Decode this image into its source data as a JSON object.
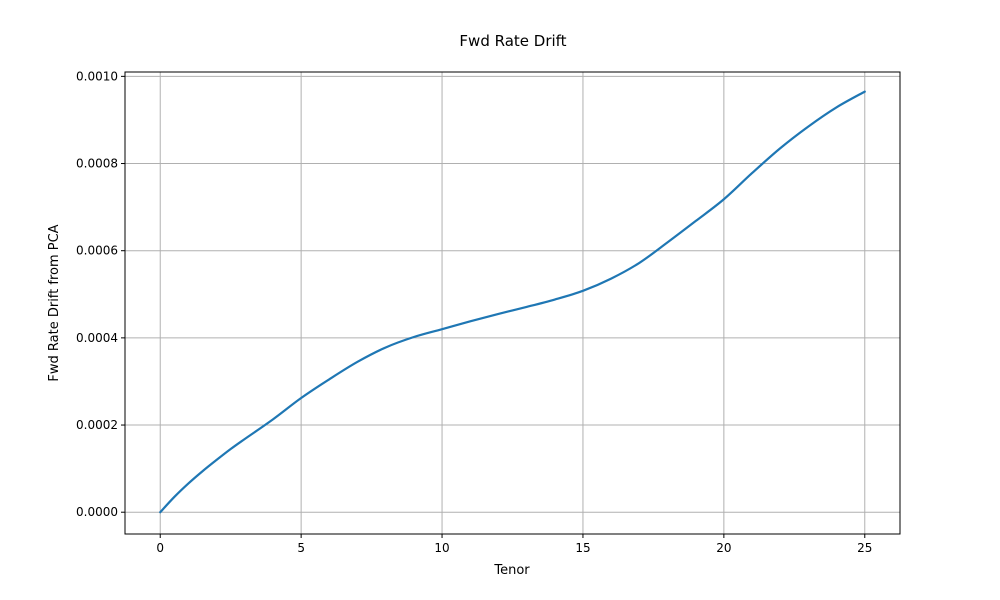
{
  "chart_data": {
    "type": "line",
    "title": "Fwd Rate Drift",
    "xlabel": "Tenor",
    "ylabel": "Fwd Rate Drift from PCA",
    "xlim": [
      -1.25,
      26.25
    ],
    "ylim": [
      -5e-05,
      0.00101
    ],
    "grid": true,
    "x_ticks": [
      0,
      5,
      10,
      15,
      20,
      25
    ],
    "x_tick_labels": [
      "0",
      "5",
      "10",
      "15",
      "20",
      "25"
    ],
    "y_ticks": [
      0.0,
      0.0002,
      0.0004,
      0.0006,
      0.0008,
      0.001
    ],
    "y_tick_labels": [
      "0.0000",
      "0.0002",
      "0.0004",
      "0.0006",
      "0.0008",
      "0.0010"
    ],
    "series_color": "#1f77b4",
    "series": [
      {
        "x": [
          0,
          0.5,
          1,
          1.5,
          2,
          2.5,
          3,
          4,
          5,
          6,
          7,
          8,
          9,
          10,
          11,
          12,
          13,
          14,
          15,
          16,
          17,
          18,
          19,
          20,
          21,
          22,
          23,
          24,
          25
        ],
        "values": [
          0.0,
          3.5e-05,
          6.6e-05,
          9.4e-05,
          0.00012,
          0.000145,
          0.000168,
          0.000213,
          0.000262,
          0.000305,
          0.000345,
          0.000378,
          0.000402,
          0.00042,
          0.000438,
          0.000455,
          0.000471,
          0.000488,
          0.000508,
          0.000536,
          0.000572,
          0.000619,
          0.000668,
          0.000718,
          0.000778,
          0.000835,
          0.000885,
          0.000929,
          0.000965
        ]
      }
    ]
  }
}
